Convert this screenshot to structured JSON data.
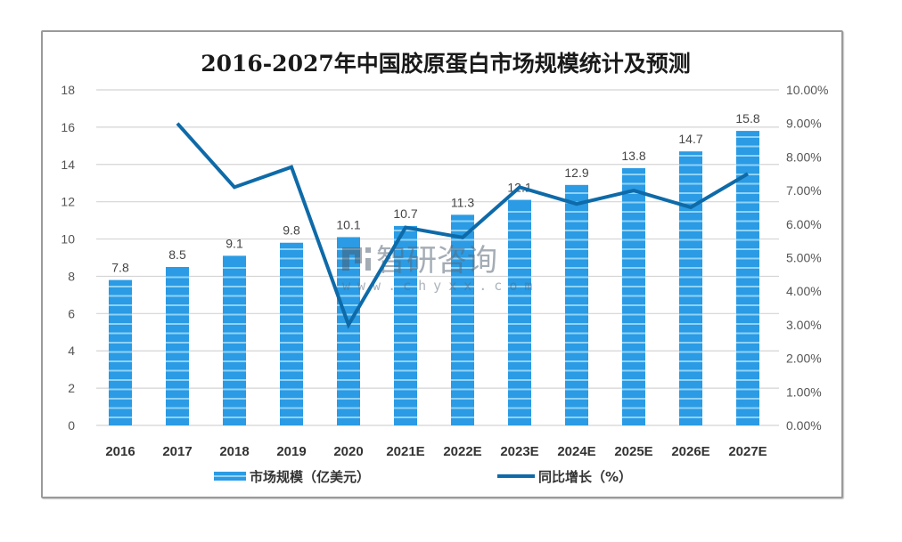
{
  "chart_data": {
    "type": "bar+line",
    "title": "2016-2027年中国胶原蛋白市场规模统计及预测",
    "categories": [
      "2016",
      "2017",
      "2018",
      "2019",
      "2020",
      "2021E",
      "2022E",
      "2023E",
      "2024E",
      "2025E",
      "2026E",
      "2027E"
    ],
    "series": [
      {
        "name": "市场规模（亿美元）",
        "type": "bar",
        "axis": "left",
        "color": "#2a9be4",
        "values": [
          7.8,
          8.5,
          9.1,
          9.8,
          10.1,
          10.7,
          11.3,
          12.1,
          12.9,
          13.8,
          14.7,
          15.8
        ],
        "labels": [
          "7.8",
          "8.5",
          "9.1",
          "9.8",
          "10.1",
          "10.7",
          "11.3",
          "12.1",
          "12.9",
          "13.8",
          "14.7",
          "15.8"
        ]
      },
      {
        "name": "同比增长（%）",
        "type": "line",
        "axis": "right",
        "color": "#0e6aa8",
        "values": [
          null,
          9.0,
          7.1,
          7.7,
          3.0,
          5.9,
          5.6,
          7.1,
          6.6,
          7.0,
          6.5,
          7.5
        ]
      }
    ],
    "y_left": {
      "min": 0,
      "max": 18,
      "step": 2,
      "ticks": [
        "0",
        "2",
        "4",
        "6",
        "8",
        "10",
        "12",
        "14",
        "16",
        "18"
      ]
    },
    "y_right": {
      "min": 0,
      "max": 10,
      "step": 1,
      "ticks": [
        "0.00%",
        "1.00%",
        "2.00%",
        "3.00%",
        "4.00%",
        "5.00%",
        "6.00%",
        "7.00%",
        "8.00%",
        "9.00%",
        "10.00%"
      ]
    },
    "grid": true,
    "legend_position": "bottom",
    "xlabel": "",
    "ylabel": ""
  },
  "watermark": {
    "name": "智研咨询",
    "url": "www.chyxx.com"
  },
  "colors": {
    "bar": "#2a9be4",
    "bar_stripe": "#8fd2f7",
    "line": "#0e6aa8",
    "grid": "#d4d4d4"
  }
}
